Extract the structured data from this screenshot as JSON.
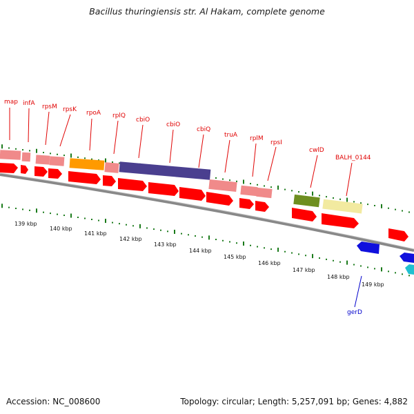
{
  "title": "Bacillus thuringiensis str. Al Hakam, complete genome",
  "footer": {
    "accession": "Accession: NC_008600",
    "summary": "Topology: circular; Length: 5,257,091 bp; Genes: 4,882"
  },
  "kbp_labels": [
    "139 kbp",
    "140 kbp",
    "141 kbp",
    "142 kbp",
    "143 kbp",
    "144 kbp",
    "145 kbp",
    "146 kbp",
    "147 kbp",
    "148 kbp",
    "149 kbp"
  ],
  "gene_labels": [
    {
      "name": "map",
      "color": "red"
    },
    {
      "name": "infA",
      "color": "red"
    },
    {
      "name": "rpsM",
      "color": "red"
    },
    {
      "name": "rpsK",
      "color": "red"
    },
    {
      "name": "rpoA",
      "color": "red"
    },
    {
      "name": "rplQ",
      "color": "red"
    },
    {
      "name": "cbiO",
      "color": "red"
    },
    {
      "name": "cbiO",
      "color": "red"
    },
    {
      "name": "cbiQ",
      "color": "red"
    },
    {
      "name": "truA",
      "color": "red"
    },
    {
      "name": "rplM",
      "color": "red"
    },
    {
      "name": "rpsI",
      "color": "red"
    },
    {
      "name": "cwlD",
      "color": "red"
    },
    {
      "name": "BALH_0144",
      "color": "red"
    },
    {
      "name": "gerD",
      "color": "blue"
    }
  ],
  "colors": {
    "gene_arrow": "#ff0000",
    "cds_pink": "#f08a8a",
    "cds_orange": "#ff9a00",
    "cds_purple": "#4a3f8f",
    "cds_olive": "#6e8f20",
    "cds_yellow": "#f2eaa0",
    "reverse_blue": "#1010dd",
    "reverse_cyan": "#20c0d0",
    "backbone": "#888888",
    "tick_green": "#1a7a1a"
  }
}
